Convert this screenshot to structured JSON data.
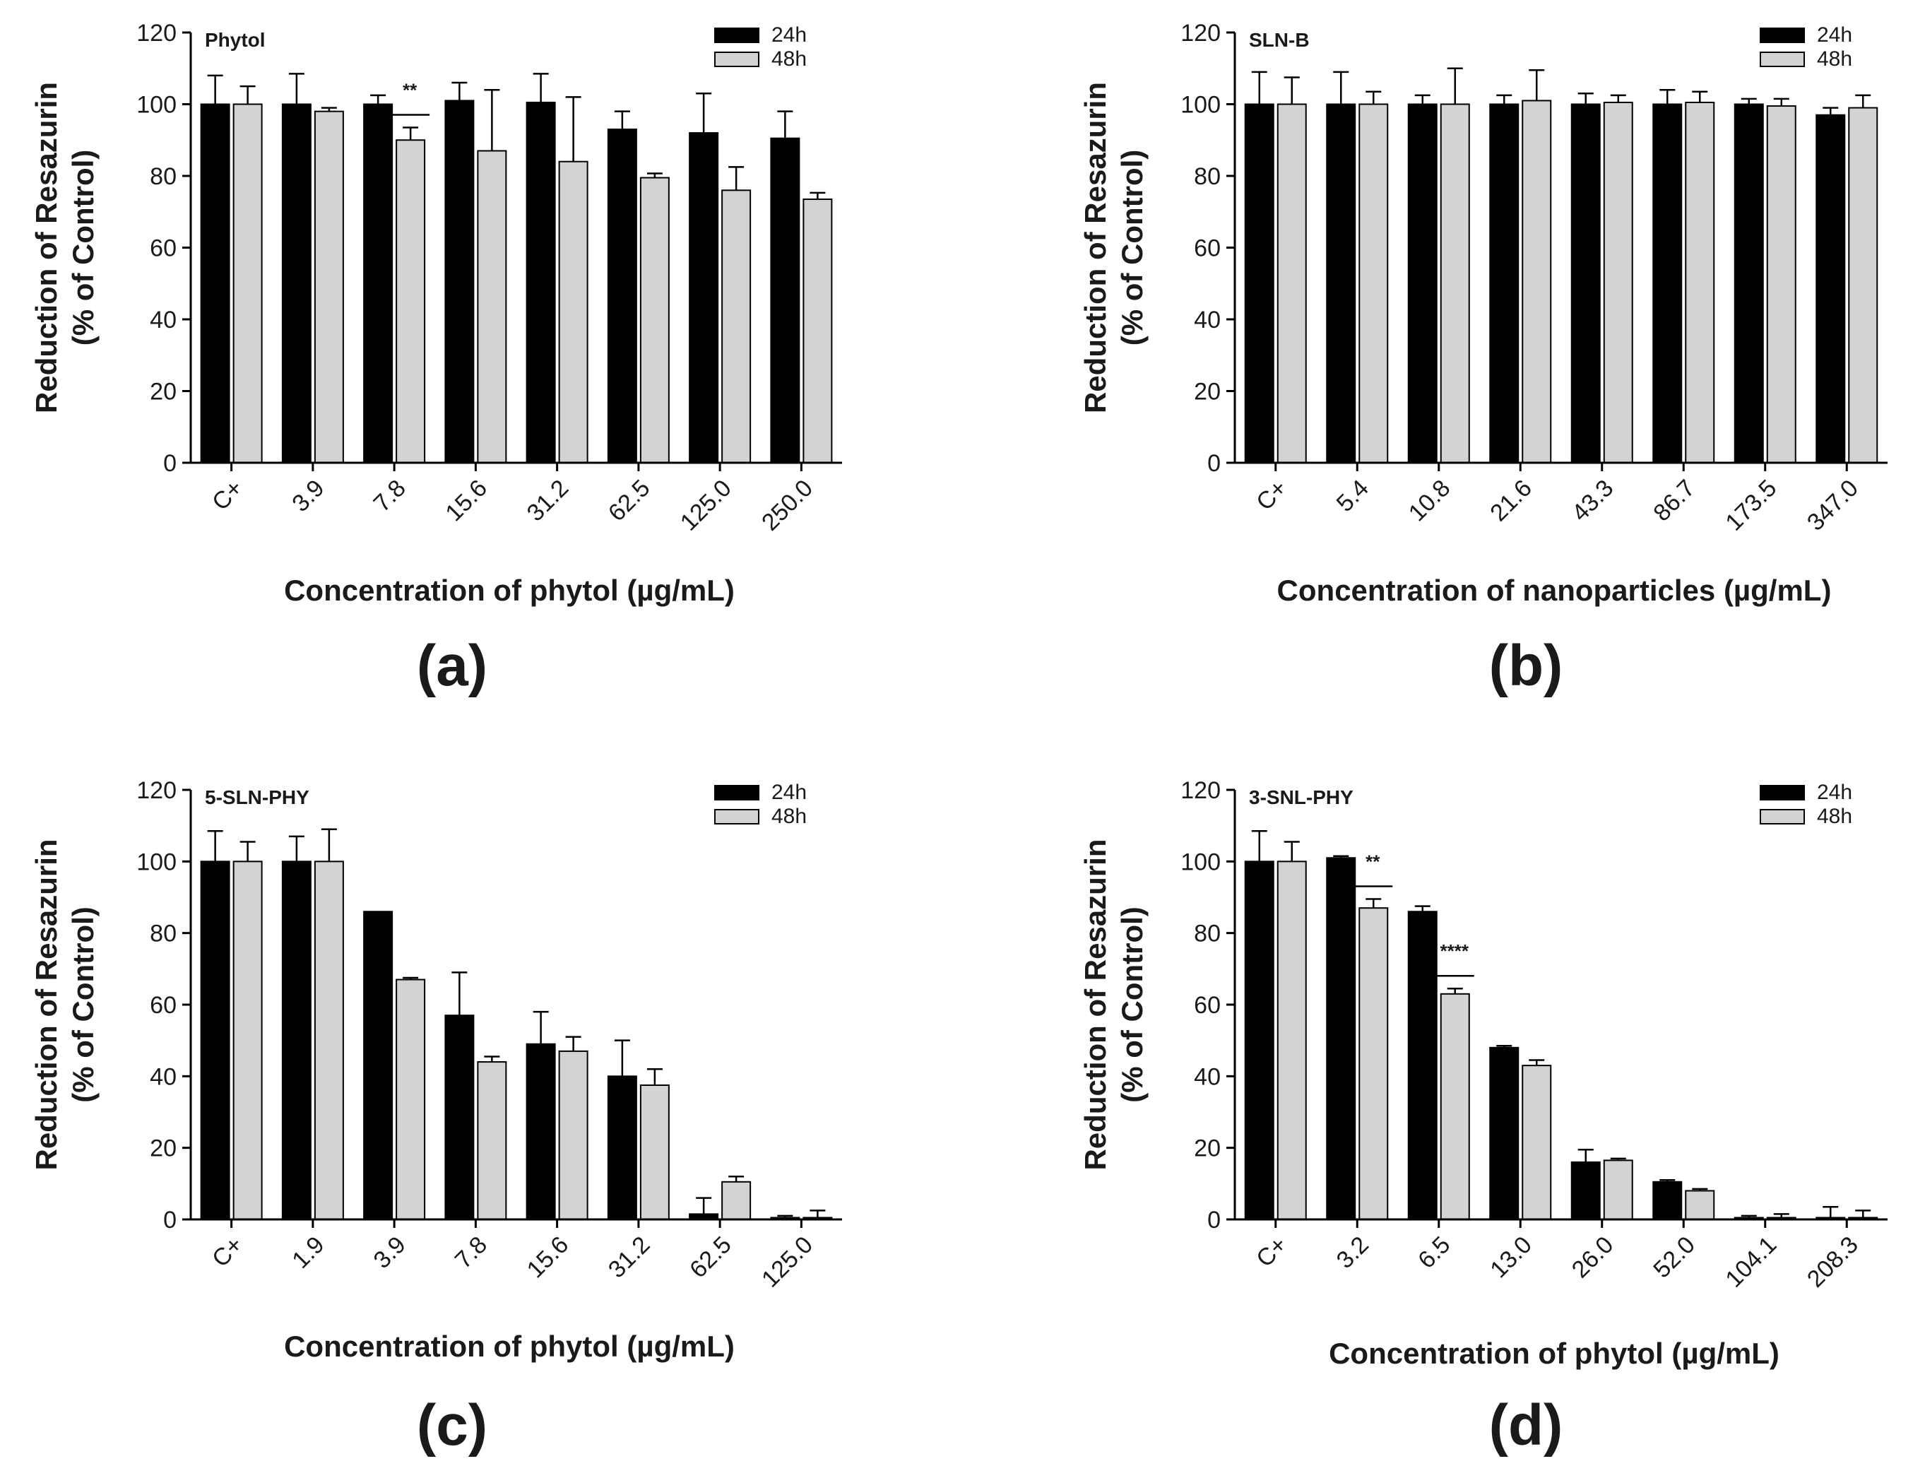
{
  "chart_data": [
    {
      "type": "bar",
      "panel_label": "(a)",
      "title": "Phytol",
      "xlabel": "Concentration of phytol (µg/mL)",
      "ylabel_line1": "Reduction of Resazurin",
      "ylabel_line2": "(% of Control)",
      "ylim": [
        0,
        120
      ],
      "yticks": [
        "0",
        "20",
        "40",
        "60",
        "80",
        "100",
        "120"
      ],
      "categories": [
        "C+",
        "3.9",
        "7.8",
        "15.6",
        "31.2",
        "62.5",
        "125.0",
        "250.0"
      ],
      "series": [
        {
          "name": "24h",
          "color": "#000000",
          "values": [
            100,
            100,
            100,
            101,
            100.5,
            93,
            92,
            90.5
          ],
          "errors": [
            8,
            8.5,
            2.5,
            5,
            8,
            5,
            11,
            7.5
          ]
        },
        {
          "name": "48h",
          "color": "#d3d3d3",
          "values": [
            100,
            98,
            90,
            87,
            84,
            79.5,
            76,
            73.5
          ],
          "errors": [
            5,
            1,
            3.5,
            17,
            18,
            1.2,
            6.5,
            1.8
          ]
        }
      ],
      "significance": [
        {
          "category_index": 2,
          "label": "**"
        }
      ],
      "legend": "top-right"
    },
    {
      "type": "bar",
      "panel_label": "(b)",
      "title": "SLN-B",
      "xlabel": "Concentration of nanoparticles (µg/mL)",
      "ylabel_line1": "Reduction of Resazurin",
      "ylabel_line2": "(% of Control)",
      "ylim": [
        0,
        120
      ],
      "yticks": [
        "0",
        "20",
        "40",
        "60",
        "80",
        "100",
        "120"
      ],
      "categories": [
        "C+",
        "5.4",
        "10.8",
        "21.6",
        "43.3",
        "86.7",
        "173.5",
        "347.0"
      ],
      "series": [
        {
          "name": "24h",
          "color": "#000000",
          "values": [
            100,
            100,
            100,
            100,
            100,
            100,
            100,
            97
          ],
          "errors": [
            9,
            9,
            2.5,
            2.5,
            3,
            4,
            1.5,
            2
          ]
        },
        {
          "name": "48h",
          "color": "#d3d3d3",
          "values": [
            100,
            100,
            100,
            101,
            100.5,
            100.5,
            99.5,
            99
          ],
          "errors": [
            7.5,
            3.5,
            10,
            8.5,
            2,
            3,
            2,
            3.5
          ]
        }
      ],
      "significance": [],
      "legend": "top-right"
    },
    {
      "type": "bar",
      "panel_label": "(c)",
      "title": "5-SLN-PHY",
      "xlabel": "Concentration of phytol (µg/mL)",
      "ylabel_line1": "Reduction of Resazurin",
      "ylabel_line2": "(% of Control)",
      "ylim": [
        0,
        120
      ],
      "yticks": [
        "0",
        "20",
        "40",
        "60",
        "80",
        "100",
        "120"
      ],
      "categories": [
        "C+",
        "1.9",
        "3.9",
        "7.8",
        "15.6",
        "31.2",
        "62.5",
        "125.0"
      ],
      "series": [
        {
          "name": "24h",
          "color": "#000000",
          "values": [
            100,
            100,
            86,
            57,
            49,
            40,
            1.5,
            0.5
          ],
          "errors": [
            8.5,
            7,
            0,
            12,
            9,
            10,
            4.5,
            0.5
          ]
        },
        {
          "name": "48h",
          "color": "#d3d3d3",
          "values": [
            100,
            100,
            67,
            44,
            47,
            37.5,
            10.5,
            0.5
          ],
          "errors": [
            5.5,
            9,
            0.5,
            1.5,
            4,
            4.5,
            1.5,
            2
          ]
        }
      ],
      "significance": [],
      "legend": "top-right"
    },
    {
      "type": "bar",
      "panel_label": "(d)",
      "title": "3-SNL-PHY",
      "xlabel": "Concentration of phytol (µg/mL)",
      "ylabel_line1": "Reduction of Resazurin",
      "ylabel_line2": "(% of Control)",
      "ylim": [
        0,
        120
      ],
      "yticks": [
        "0",
        "20",
        "40",
        "60",
        "80",
        "100",
        "120"
      ],
      "categories": [
        "C+",
        "3.2",
        "6.5",
        "13.0",
        "26.0",
        "52.0",
        "104.1",
        "208.3"
      ],
      "series": [
        {
          "name": "24h",
          "color": "#000000",
          "values": [
            100,
            101,
            86,
            48,
            16,
            10.5,
            0.5,
            0.5
          ],
          "errors": [
            8.5,
            0.5,
            1.5,
            0.5,
            3.5,
            0.5,
            0.5,
            3
          ]
        },
        {
          "name": "48h",
          "color": "#d3d3d3",
          "values": [
            100,
            87,
            63,
            43,
            16.5,
            8,
            0.5,
            0.5
          ],
          "errors": [
            5.5,
            2.5,
            1.5,
            1.5,
            0.5,
            0.5,
            1,
            2
          ]
        }
      ],
      "significance": [
        {
          "category_index": 1,
          "label": "**"
        },
        {
          "category_index": 2,
          "label": "****"
        }
      ],
      "legend": "top-right"
    }
  ]
}
